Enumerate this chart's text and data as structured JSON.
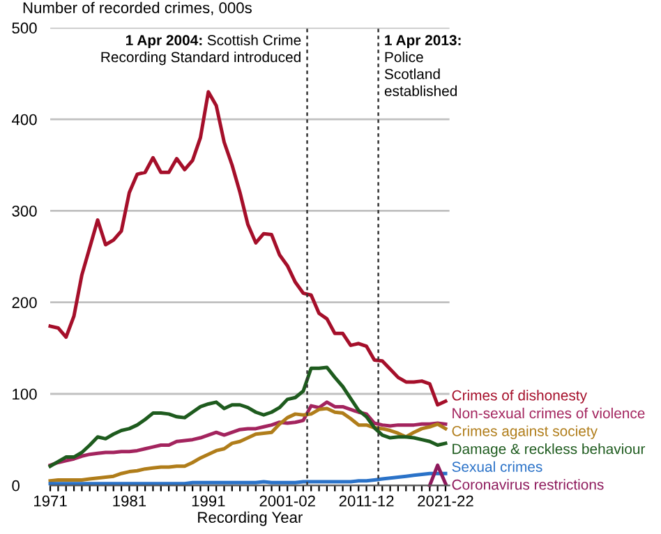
{
  "chart_data": {
    "type": "line",
    "ylabel": "Number of recorded crimes, 000s",
    "xlabel": "Recording Year",
    "x": [
      1971,
      1972,
      1973,
      1974,
      1975,
      1976,
      1977,
      1978,
      1979,
      1980,
      1981,
      1982,
      1983,
      1984,
      1985,
      1986,
      1987,
      1988,
      1989,
      1990,
      1991,
      1992,
      1993,
      1994,
      1995,
      1996,
      1997,
      1998,
      1999,
      2000,
      2001,
      2002,
      2003,
      2004,
      2005,
      2006,
      2007,
      2008,
      2009,
      2010,
      2011,
      2012,
      2013,
      2014,
      2015,
      2016,
      2017,
      2018,
      2019,
      2020,
      2021
    ],
    "series": [
      {
        "name": "Crimes of dishonesty",
        "color": "#a50f2a",
        "values": [
          174,
          172,
          162,
          185,
          230,
          260,
          290,
          263,
          268,
          278,
          320,
          340,
          342,
          358,
          342,
          342,
          357,
          345,
          355,
          380,
          430,
          415,
          375,
          350,
          320,
          285,
          265,
          275,
          274,
          252,
          240,
          222,
          210,
          208,
          188,
          182,
          166,
          166,
          153,
          155,
          152,
          137,
          136,
          127,
          118,
          113,
          113,
          114,
          111,
          88,
          92
        ]
      },
      {
        "name": "Non-sexual crimes of violence",
        "color": "#a3245e",
        "values": [
          22,
          25,
          27,
          29,
          32,
          34,
          35,
          36,
          36,
          37,
          37,
          38,
          40,
          42,
          44,
          44,
          48,
          49,
          50,
          52,
          55,
          58,
          55,
          58,
          61,
          62,
          62,
          64,
          66,
          69,
          68,
          69,
          71,
          87,
          85,
          91,
          86,
          86,
          83,
          80,
          78,
          68,
          66,
          65,
          66,
          66,
          66,
          67,
          67,
          68,
          67
        ]
      },
      {
        "name": "Crimes against society",
        "color": "#b07d1a",
        "values": [
          5,
          6,
          6,
          6,
          6,
          7,
          8,
          9,
          10,
          13,
          15,
          16,
          18,
          19,
          20,
          20,
          21,
          21,
          25,
          30,
          34,
          38,
          40,
          46,
          48,
          52,
          56,
          57,
          58,
          67,
          74,
          78,
          77,
          78,
          83,
          84,
          80,
          79,
          73,
          66,
          66,
          63,
          62,
          60,
          57,
          53,
          58,
          62,
          64,
          67,
          62
        ]
      },
      {
        "name": "Damage & reckless behaviour",
        "color": "#1e5b1e",
        "values": [
          21,
          26,
          31,
          31,
          36,
          44,
          53,
          51,
          56,
          60,
          62,
          66,
          72,
          79,
          79,
          78,
          75,
          74,
          80,
          86,
          89,
          91,
          84,
          88,
          88,
          85,
          80,
          77,
          80,
          85,
          94,
          96,
          103,
          128,
          128,
          129,
          118,
          108,
          95,
          82,
          75,
          63,
          55,
          52,
          53,
          53,
          52,
          50,
          48,
          44,
          46
        ]
      },
      {
        "name": "Sexual crimes",
        "color": "#2a72c8",
        "values": [
          2,
          2,
          2,
          2,
          2,
          2,
          2,
          2,
          2,
          2,
          2,
          2,
          2,
          2,
          2,
          2,
          2,
          2,
          3,
          3,
          3,
          3,
          3,
          3,
          3,
          3,
          3,
          4,
          3,
          3,
          3,
          3,
          4,
          4,
          4,
          4,
          4,
          4,
          4,
          5,
          5,
          6,
          7,
          8,
          9,
          10,
          11,
          12,
          13,
          13,
          13
        ]
      },
      {
        "name": "Coronavirus restrictions",
        "color": "#8e1a5c",
        "x": [
          2019,
          2020,
          2021
        ],
        "values": [
          0,
          22,
          2
        ]
      }
    ],
    "xlim": [
      1971,
      2021.5
    ],
    "xticks": [
      {
        "value": 1971,
        "label": "1971"
      },
      {
        "value": 1972,
        "label": null
      },
      {
        "value": 1973,
        "label": null
      },
      {
        "value": 1974,
        "label": null
      },
      {
        "value": 1975,
        "label": null
      },
      {
        "value": 1976,
        "label": null
      },
      {
        "value": 1977,
        "label": null
      },
      {
        "value": 1978,
        "label": null
      },
      {
        "value": 1979,
        "label": null
      },
      {
        "value": 1980,
        "label": null
      },
      {
        "value": 1981,
        "label": "1981"
      },
      {
        "value": 1982,
        "label": null
      },
      {
        "value": 1983,
        "label": null
      },
      {
        "value": 1984,
        "label": null
      },
      {
        "value": 1985,
        "label": null
      },
      {
        "value": 1986,
        "label": null
      },
      {
        "value": 1987,
        "label": null
      },
      {
        "value": 1988,
        "label": null
      },
      {
        "value": 1989,
        "label": null
      },
      {
        "value": 1990,
        "label": null
      },
      {
        "value": 1991,
        "label": "1991"
      },
      {
        "value": 1992,
        "label": null
      },
      {
        "value": 1993,
        "label": null
      },
      {
        "value": 1994,
        "label": null
      },
      {
        "value": 1995,
        "label": null
      },
      {
        "value": 1996,
        "label": null
      },
      {
        "value": 1997,
        "label": null
      },
      {
        "value": 1998,
        "label": null
      },
      {
        "value": 1999,
        "label": null
      },
      {
        "value": 2000,
        "label": null
      },
      {
        "value": 2001,
        "label": "2001-02"
      },
      {
        "value": 2002,
        "label": null
      },
      {
        "value": 2003,
        "label": null
      },
      {
        "value": 2004,
        "label": null
      },
      {
        "value": 2005,
        "label": null
      },
      {
        "value": 2006,
        "label": null
      },
      {
        "value": 2007,
        "label": null
      },
      {
        "value": 2008,
        "label": null
      },
      {
        "value": 2009,
        "label": null
      },
      {
        "value": 2010,
        "label": null
      },
      {
        "value": 2011,
        "label": "2011-12"
      },
      {
        "value": 2012,
        "label": null
      },
      {
        "value": 2013,
        "label": null
      },
      {
        "value": 2014,
        "label": null
      },
      {
        "value": 2015,
        "label": null
      },
      {
        "value": 2016,
        "label": null
      },
      {
        "value": 2017,
        "label": null
      },
      {
        "value": 2018,
        "label": null
      },
      {
        "value": 2019,
        "label": null
      },
      {
        "value": 2020,
        "label": null
      },
      {
        "value": 2021,
        "label": "2021-22"
      }
    ],
    "ylim": [
      0,
      500
    ],
    "yticks": [
      0,
      100,
      200,
      300,
      400,
      500
    ],
    "grid": "y",
    "legend": false,
    "line_style": "solid",
    "ref_lines": [
      {
        "axis": "x",
        "value": 2003.5,
        "label": "1 Apr 2004: Scottish Crime\nRecording Standard introduced",
        "color": "#333333",
        "line_style": "dashed"
      },
      {
        "axis": "x",
        "value": 2012.5,
        "label": "1 Apr 2013:\nPolice\nScotland\nestablished",
        "color": "#333333",
        "line_style": "dashed"
      }
    ]
  }
}
